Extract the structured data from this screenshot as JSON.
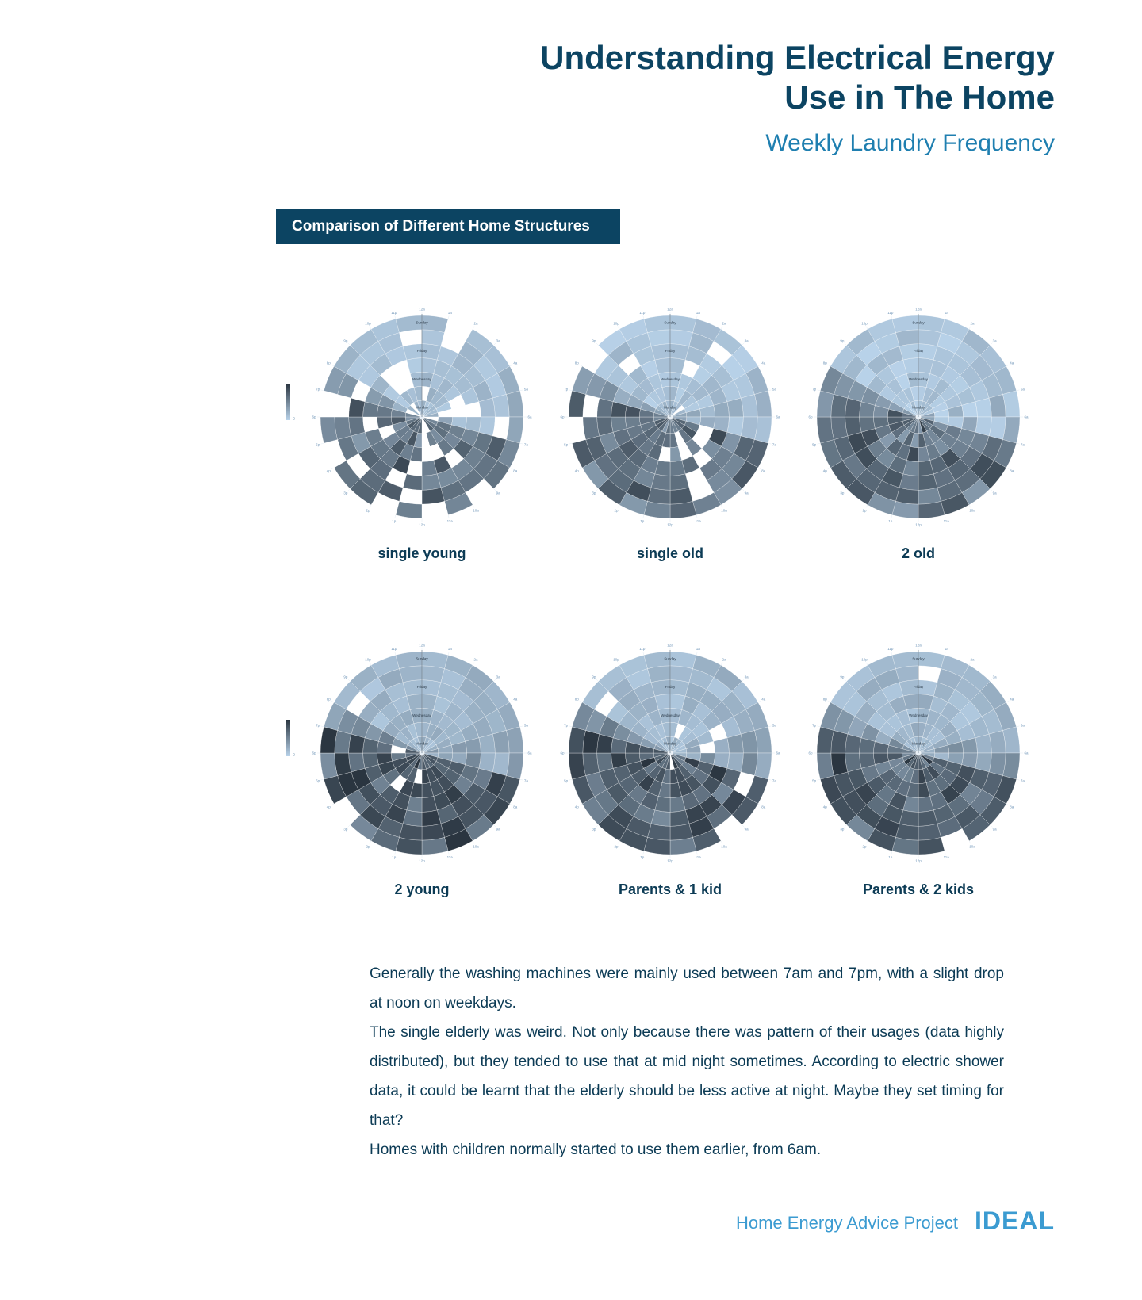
{
  "header": {
    "title_line1": "Understanding Electrical Energy",
    "title_line2": "Use in The Home",
    "subtitle": "Weekly Laundry Frequency"
  },
  "section": {
    "title": "Comparison of Different Home Structures"
  },
  "legend": {
    "label": "Punch Card",
    "min_label": "0",
    "dark_color": "#2a3540",
    "light_color": "#b9d3ea"
  },
  "chart_data": [
    {
      "type": "heatmap",
      "title": "single young",
      "days": [
        "Monday",
        "Tuesday",
        "Wednesday",
        "Thursday",
        "Friday",
        "Saturday",
        "Sunday"
      ],
      "hours": [
        "12a",
        "1a",
        "2a",
        "3a",
        "4a",
        "5a",
        "6a",
        "7a",
        "8a",
        "9a",
        "10a",
        "11a",
        "12p",
        "1p",
        "2p",
        "3p",
        "4p",
        "5p",
        "6p",
        "7p",
        "8p",
        "9p",
        "10p",
        "11p"
      ]
    },
    {
      "type": "heatmap",
      "title": "single old",
      "days": [
        "Monday",
        "Tuesday",
        "Wednesday",
        "Thursday",
        "Friday",
        "Saturday",
        "Sunday"
      ],
      "hours": [
        "12a",
        "1a",
        "2a",
        "3a",
        "4a",
        "5a",
        "6a",
        "7a",
        "8a",
        "9a",
        "10a",
        "11a",
        "12p",
        "1p",
        "2p",
        "3p",
        "4p",
        "5p",
        "6p",
        "7p",
        "8p",
        "9p",
        "10p",
        "11p"
      ]
    },
    {
      "type": "heatmap",
      "title": "2 old",
      "days": [
        "Monday",
        "Tuesday",
        "Wednesday",
        "Thursday",
        "Friday",
        "Saturday",
        "Sunday"
      ],
      "hours": [
        "12a",
        "1a",
        "2a",
        "3a",
        "4a",
        "5a",
        "6a",
        "7a",
        "8a",
        "9a",
        "10a",
        "11a",
        "12p",
        "1p",
        "2p",
        "3p",
        "4p",
        "5p",
        "6p",
        "7p",
        "8p",
        "9p",
        "10p",
        "11p"
      ]
    },
    {
      "type": "heatmap",
      "title": "2 young",
      "days": [
        "Monday",
        "Tuesday",
        "Wednesday",
        "Thursday",
        "Friday",
        "Saturday",
        "Sunday"
      ],
      "hours": [
        "12a",
        "1a",
        "2a",
        "3a",
        "4a",
        "5a",
        "6a",
        "7a",
        "8a",
        "9a",
        "10a",
        "11a",
        "12p",
        "1p",
        "2p",
        "3p",
        "4p",
        "5p",
        "6p",
        "7p",
        "8p",
        "9p",
        "10p",
        "11p"
      ]
    },
    {
      "type": "heatmap",
      "title": "Parents & 1 kid",
      "days": [
        "Monday",
        "Tuesday",
        "Wednesday",
        "Thursday",
        "Friday",
        "Saturday",
        "Sunday"
      ],
      "hours": [
        "12a",
        "1a",
        "2a",
        "3a",
        "4a",
        "5a",
        "6a",
        "7a",
        "8a",
        "9a",
        "10a",
        "11a",
        "12p",
        "1p",
        "2p",
        "3p",
        "4p",
        "5p",
        "6p",
        "7p",
        "8p",
        "9p",
        "10p",
        "11p"
      ]
    },
    {
      "type": "heatmap",
      "title": "Parents & 2 kids",
      "days": [
        "Monday",
        "Tuesday",
        "Wednesday",
        "Thursday",
        "Friday",
        "Saturday",
        "Sunday"
      ],
      "hours": [
        "12a",
        "1a",
        "2a",
        "3a",
        "4a",
        "5a",
        "6a",
        "7a",
        "8a",
        "9a",
        "10a",
        "11a",
        "12p",
        "1p",
        "2p",
        "3p",
        "4p",
        "5p",
        "6p",
        "7p",
        "8p",
        "9p",
        "10p",
        "11p"
      ]
    }
  ],
  "body": {
    "p1": "Generally the washing machines were mainly used between 7am and 7pm, with a slight drop at noon on weekdays.",
    "p2": "The single elderly was weird. Not only because there was pattern of their usages (data highly distributed), but they tended to use that at mid night sometimes. According to electric shower data, it could be learnt that the elderly should be less active at night. Maybe they set timing for that?",
    "p3": "Homes with children normally started to use them earlier, from 6am."
  },
  "footer": {
    "project": "Home Energy Advice Project",
    "logo": "IDEAL"
  }
}
